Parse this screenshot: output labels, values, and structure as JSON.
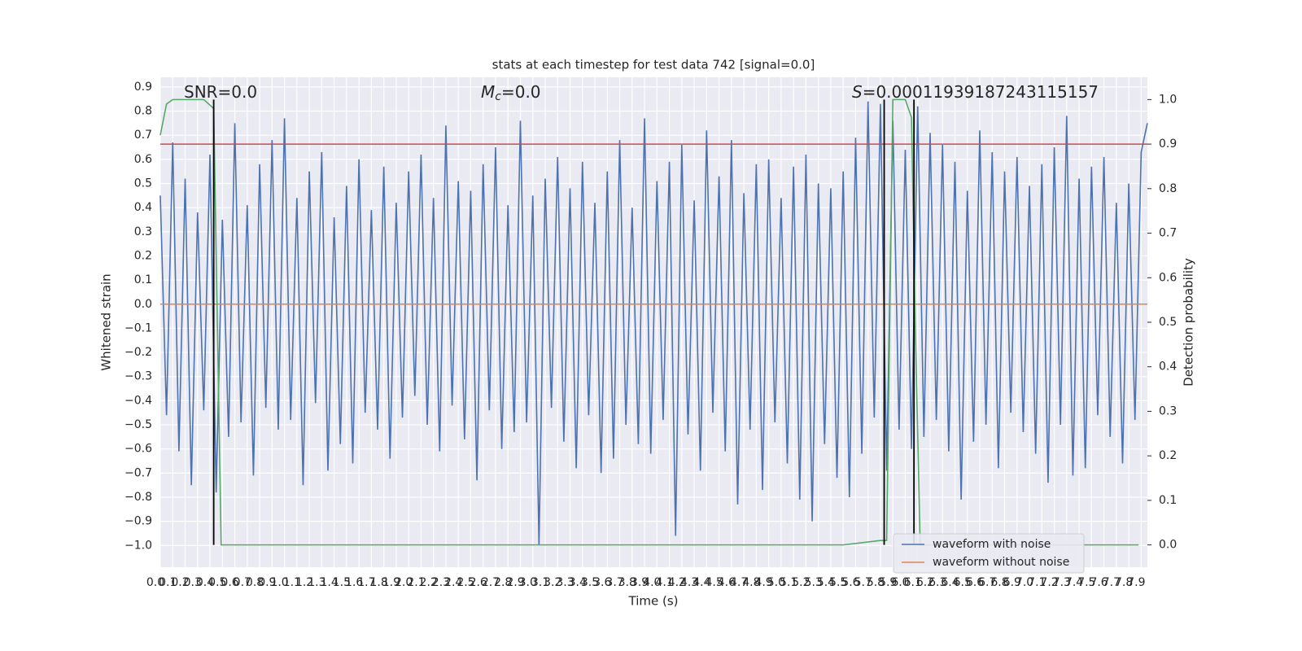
{
  "chart_data": {
    "type": "line",
    "title": "stats at each timestep for test data 742 [signal=0.0]",
    "xlabel": "Time (s)",
    "ylabel": "Whitened strain",
    "y2label": "Detection probability",
    "annotations": [
      [
        "SNR=0.0"
      ],
      [
        "M",
        "c",
        "=0.0"
      ],
      [
        "S",
        "=0.00011939187243115157"
      ]
    ],
    "xlim": [
      0,
      7.95
    ],
    "xticks": [
      {
        "value": 0,
        "label": "0.0"
      },
      0.1,
      0.2,
      0.3,
      0.4,
      0.5,
      0.6,
      0.7,
      0.8,
      0.9,
      {
        "value": 1,
        "label": "1.0"
      },
      1.1,
      1.2,
      1.3,
      1.4,
      1.5,
      1.6,
      1.7,
      1.8,
      1.9,
      {
        "value": 2,
        "label": "2.0"
      },
      2.1,
      2.2,
      2.3,
      2.4,
      2.5,
      2.6,
      2.7,
      2.8,
      2.9,
      {
        "value": 3,
        "label": "3.0"
      },
      3.1,
      3.2,
      3.3,
      3.4,
      3.5,
      3.6,
      3.7,
      3.8,
      3.9,
      {
        "value": 4,
        "label": "4.0"
      },
      4.1,
      4.2,
      4.3,
      4.4,
      4.5,
      4.6,
      4.7,
      4.8,
      4.9,
      {
        "value": 5,
        "label": "5.0"
      },
      5.1,
      5.2,
      5.3,
      5.4,
      5.5,
      5.6,
      5.7,
      5.8,
      5.9,
      {
        "value": 6,
        "label": "6.0"
      },
      6.1,
      6.2,
      6.3,
      6.4,
      6.5,
      6.6,
      6.7,
      6.8,
      6.9,
      {
        "value": 7,
        "label": "7.0"
      },
      7.1,
      7.2,
      7.3,
      7.4,
      7.5,
      7.6,
      7.7,
      7.8,
      7.9
    ],
    "ylim": [
      -1.09,
      0.94
    ],
    "yticks": [
      {
        "value": -1,
        "label": "−1.0"
      },
      {
        "value": -0.9,
        "label": "−0.9"
      },
      {
        "value": -0.8,
        "label": "−0.8"
      },
      {
        "value": -0.7,
        "label": "−0.7"
      },
      {
        "value": -0.6,
        "label": "−0.6"
      },
      {
        "value": -0.5,
        "label": "−0.5"
      },
      {
        "value": -0.4,
        "label": "−0.4"
      },
      {
        "value": -0.3,
        "label": "−0.3"
      },
      {
        "value": -0.2,
        "label": "−0.2"
      },
      {
        "value": -0.1,
        "label": "−0.1"
      },
      {
        "value": 0,
        "label": "0.0"
      },
      0.1,
      0.2,
      0.3,
      0.4,
      0.5,
      0.6,
      0.7,
      0.8,
      0.9
    ],
    "y2lim": [
      -0.05,
      1.05
    ],
    "y2ticks": [
      {
        "value": 0,
        "label": "0.0"
      },
      0.1,
      0.2,
      0.3,
      0.4,
      0.5,
      0.6,
      0.7,
      0.8,
      0.9,
      {
        "value": 1,
        "label": "1.0"
      }
    ],
    "grid": true,
    "legend": "lower right",
    "series": [
      {
        "name": "waveform with noise",
        "color": "#4c72b0",
        "x": [
          0,
          0.05,
          0.1,
          0.15,
          0.2,
          0.25,
          0.3,
          0.35,
          0.4,
          0.45,
          0.5,
          0.55,
          0.6,
          0.65,
          0.7,
          0.75,
          0.8,
          0.85,
          0.9,
          0.95,
          1,
          1.05,
          1.1,
          1.15,
          1.2,
          1.25,
          1.3,
          1.35,
          1.4,
          1.45,
          1.5,
          1.55,
          1.6,
          1.65,
          1.7,
          1.75,
          1.8,
          1.85,
          1.9,
          1.95,
          2,
          2.05,
          2.1,
          2.15,
          2.2,
          2.25,
          2.3,
          2.35,
          2.4,
          2.45,
          2.5,
          2.55,
          2.6,
          2.65,
          2.7,
          2.75,
          2.8,
          2.85,
          2.9,
          2.95,
          3,
          3.05,
          3.1,
          3.15,
          3.2,
          3.25,
          3.3,
          3.35,
          3.4,
          3.45,
          3.5,
          3.55,
          3.6,
          3.65,
          3.7,
          3.75,
          3.8,
          3.85,
          3.9,
          3.95,
          4,
          4.05,
          4.1,
          4.15,
          4.2,
          4.25,
          4.3,
          4.35,
          4.4,
          4.45,
          4.5,
          4.55,
          4.6,
          4.65,
          4.7,
          4.75,
          4.8,
          4.85,
          4.9,
          4.95,
          5,
          5.05,
          5.1,
          5.15,
          5.2,
          5.25,
          5.3,
          5.35,
          5.4,
          5.45,
          5.5,
          5.55,
          5.6,
          5.65,
          5.7,
          5.75,
          5.8,
          5.85,
          5.9,
          5.95,
          6,
          6.05,
          6.1,
          6.15,
          6.2,
          6.25,
          6.3,
          6.35,
          6.4,
          6.45,
          6.5,
          6.55,
          6.6,
          6.65,
          6.7,
          6.75,
          6.8,
          6.85,
          6.9,
          6.95,
          7,
          7.05,
          7.1,
          7.15,
          7.2,
          7.25,
          7.3,
          7.35,
          7.4,
          7.45,
          7.5,
          7.55,
          7.6,
          7.65,
          7.7,
          7.75,
          7.8,
          7.85,
          7.9,
          7.95
        ],
        "values": [
          0.45,
          -0.46,
          0.67,
          -0.61,
          0.52,
          -0.75,
          0.38,
          -0.44,
          0.62,
          -0.78,
          0.35,
          -0.55,
          0.75,
          -0.49,
          0.41,
          -0.71,
          0.58,
          -0.43,
          0.68,
          -0.52,
          0.77,
          -0.48,
          0.44,
          -0.75,
          0.55,
          -0.41,
          0.63,
          -0.69,
          0.36,
          -0.58,
          0.49,
          -0.66,
          0.6,
          -0.45,
          0.39,
          -0.52,
          0.57,
          -0.64,
          0.42,
          -0.47,
          0.55,
          -0.38,
          0.62,
          -0.5,
          0.44,
          -0.61,
          0.74,
          -0.42,
          0.51,
          -0.56,
          0.47,
          -0.73,
          0.58,
          -0.44,
          0.65,
          -0.6,
          0.41,
          -0.53,
          0.76,
          -0.49,
          0.45,
          -1.0,
          0.52,
          -0.43,
          0.61,
          -0.57,
          0.48,
          -0.68,
          0.59,
          -0.46,
          0.42,
          -0.7,
          0.55,
          -0.64,
          0.68,
          -0.5,
          0.4,
          -0.58,
          0.77,
          -0.62,
          0.51,
          -0.48,
          0.59,
          -0.96,
          0.66,
          -0.54,
          0.43,
          -0.69,
          0.72,
          -0.45,
          0.53,
          -0.61,
          0.68,
          -0.83,
          0.46,
          -0.52,
          0.58,
          -0.77,
          0.6,
          -0.49,
          0.44,
          -0.66,
          0.57,
          -0.81,
          0.62,
          -0.9,
          0.5,
          -0.58,
          0.48,
          -0.72,
          0.55,
          -0.8,
          0.69,
          -0.62,
          0.84,
          -0.47,
          0.83,
          -0.69,
          0.76,
          -0.52,
          0.64,
          -0.6,
          0.82,
          -0.55,
          0.71,
          -0.48,
          0.66,
          -0.61,
          0.59,
          -0.81,
          0.47,
          -0.57,
          0.72,
          -0.5,
          0.63,
          -0.68,
          0.55,
          -0.45,
          0.61,
          -0.53,
          0.49,
          -0.62,
          0.58,
          -0.74,
          0.65,
          -0.5,
          0.78,
          -0.71,
          0.52,
          -0.68,
          0.57,
          -0.46,
          0.61,
          -0.55,
          0.42,
          -0.66,
          0.5,
          -0.48,
          0.63,
          0.75
        ]
      },
      {
        "name": "waveform without noise",
        "color": "#dd8452",
        "x": [
          0,
          7.95
        ],
        "values": [
          0,
          0
        ]
      },
      {
        "color": "#55a868",
        "axis": "y2",
        "x": [
          0,
          0.05,
          0.1,
          0.35,
          0.43,
          0.49,
          0.5,
          5.5,
          5.8,
          5.85,
          5.9,
          6.0,
          6.05,
          6.08,
          6.12,
          7.88
        ],
        "values": [
          0.92,
          0.99,
          1.0,
          1.0,
          0.98,
          0,
          0,
          0,
          0.01,
          0.01,
          1.0,
          1.0,
          0.96,
          0.5,
          0,
          0
        ]
      }
    ],
    "threshold": {
      "value": 0.9,
      "axis": "y2",
      "color": "#c44e52"
    },
    "vlines": {
      "x": [
        0.43,
        5.83,
        6.07
      ],
      "y2": [
        0,
        1
      ],
      "color": "#000000"
    }
  }
}
